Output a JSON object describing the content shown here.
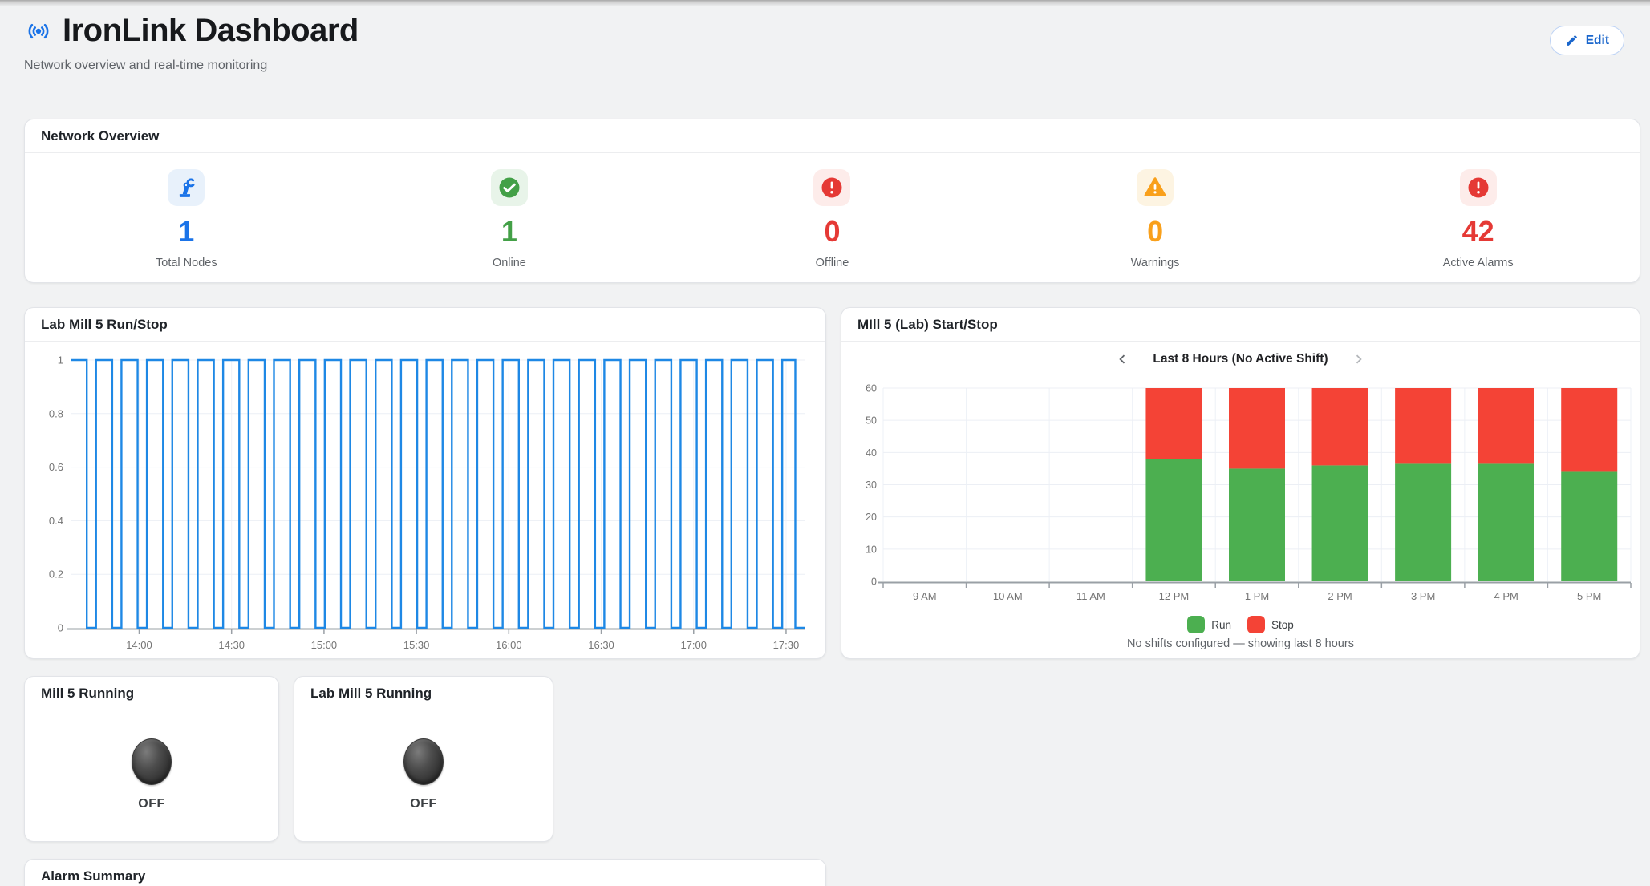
{
  "header": {
    "title": "IronLink Dashboard",
    "subtitle": "Network overview and real-time monitoring",
    "edit_button": "Edit",
    "accent_color": "#1a73e8"
  },
  "network_overview": {
    "title": "Network Overview",
    "stats": [
      {
        "label": "Total Nodes",
        "value": "1",
        "icon": "robot-arm-icon",
        "color": "#1a73e8",
        "icon_bg": "#e8f1fb"
      },
      {
        "label": "Online",
        "value": "1",
        "icon": "check-circle-icon",
        "color": "#43a047",
        "icon_bg": "#e8f4e9"
      },
      {
        "label": "Offline",
        "value": "0",
        "icon": "error-circle-icon",
        "color": "#e53935",
        "icon_bg": "#fdecea"
      },
      {
        "label": "Warnings",
        "value": "0",
        "icon": "warning-triangle-icon",
        "color": "#f9a01b",
        "icon_bg": "#fdf4e2"
      },
      {
        "label": "Active Alarms",
        "value": "42",
        "icon": "alarm-error-icon",
        "color": "#e53935",
        "icon_bg": "#fdecea"
      }
    ]
  },
  "left_chart_card": {
    "title": "Lab Mill 5 Run/Stop"
  },
  "right_chart_card": {
    "title": "MIll 5 (Lab) Start/Stop",
    "range_label": "Last 8 Hours (No Active Shift)",
    "legend": [
      {
        "label": "Run",
        "color": "#4caf50"
      },
      {
        "label": "Stop",
        "color": "#f44336"
      }
    ],
    "footer": "No shifts configured — showing last 8 hours"
  },
  "toggle_cards": [
    {
      "title": "Mill 5 Running",
      "state": "OFF"
    },
    {
      "title": "Lab Mill 5 Running",
      "state": "OFF"
    }
  ],
  "alarm_summary": {
    "title": "Alarm Summary"
  },
  "chart_data": [
    {
      "id": "lab-mill-5-run-stop",
      "type": "line",
      "subtype": "digital-square-wave",
      "title": "Lab Mill 5 Run/Stop",
      "ylim": [
        0,
        1
      ],
      "y_ticks": [
        0,
        0.2,
        0.4,
        0.6,
        0.8,
        1
      ],
      "x_minutes_range": [
        818,
        1056
      ],
      "x_ticks": [
        {
          "min": 840,
          "label": "14:00"
        },
        {
          "min": 870,
          "label": "14:30"
        },
        {
          "min": 900,
          "label": "15:00"
        },
        {
          "min": 930,
          "label": "15:30"
        },
        {
          "min": 960,
          "label": "16:00"
        },
        {
          "min": 990,
          "label": "16:30"
        },
        {
          "min": 1020,
          "label": "17:00"
        },
        {
          "min": 1050,
          "label": "17:30"
        }
      ],
      "signal": {
        "initial_value": 1,
        "high_value": 1,
        "low_value": 0,
        "low_duration_min": 3,
        "low_starts_min": [
          823,
          831.25,
          839.5,
          847.75,
          856,
          864.25,
          872.5,
          880.75,
          889,
          897.25,
          905.5,
          913.75,
          922,
          930.25,
          938.5,
          946.75,
          955,
          963.25,
          971.5,
          979.75,
          988,
          996.25,
          1004.5,
          1012.75,
          1021,
          1029.25,
          1037.5,
          1045.75
        ],
        "drop_to_zero_at_min": 1053
      },
      "line_color": "#1e88e5",
      "grid": true
    },
    {
      "id": "mill-5-lab-start-stop",
      "type": "bar",
      "stacked": true,
      "title": "MIll 5 (Lab) Start/Stop",
      "categories": [
        "9 AM",
        "10 AM",
        "11 AM",
        "12 PM",
        "1 PM",
        "2 PM",
        "3 PM",
        "4 PM",
        "5 PM"
      ],
      "series": [
        {
          "name": "Run",
          "color": "#4caf50",
          "values": [
            0,
            0,
            0,
            38,
            35,
            36,
            36.5,
            36.5,
            34
          ]
        },
        {
          "name": "Stop",
          "color": "#f44336",
          "values": [
            0,
            0,
            0,
            22,
            25,
            24,
            23.5,
            23.5,
            26
          ]
        }
      ],
      "ylim": [
        0,
        60
      ],
      "y_ticks": [
        0,
        10,
        20,
        30,
        40,
        50,
        60
      ],
      "legend_position": "bottom",
      "grid": true
    }
  ]
}
